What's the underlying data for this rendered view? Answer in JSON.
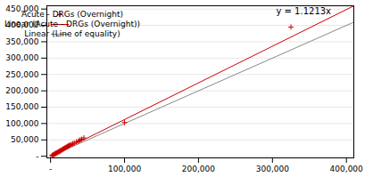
{
  "chart_data": {
    "type": "scatter",
    "series": [
      {
        "name": "Acute - DRGs (Overnight)",
        "type": "scatter",
        "color": "#cc0000",
        "marker": "plus",
        "x": [
          2000,
          3000,
          4000,
          5000,
          6000,
          7000,
          8000,
          9000,
          10000,
          11000,
          12000,
          13000,
          14000,
          15000,
          16000,
          17000,
          18000,
          19000,
          20000,
          21000,
          22000,
          23000,
          24000,
          25000,
          26000,
          28000,
          30000,
          32000,
          35000,
          38000,
          40000,
          42000,
          45000,
          100000,
          325000
        ],
        "values": [
          2500,
          3500,
          5000,
          6000,
          7500,
          8500,
          10000,
          11000,
          12500,
          13500,
          15000,
          16000,
          17500,
          19000,
          20500,
          22000,
          23000,
          24500,
          26000,
          27000,
          28500,
          30000,
          31000,
          32500,
          34000,
          36000,
          38000,
          40000,
          44000,
          47000,
          50000,
          52000,
          56000,
          103000,
          395000
        ]
      },
      {
        "name": "Linear (Acute - DRGs (Overnight))",
        "type": "line",
        "color": "#cc0000",
        "line_style": "solid",
        "x": [
          0,
          410000
        ],
        "values": [
          0,
          459733
        ]
      },
      {
        "name": "Linear (Line of equality)",
        "type": "line",
        "color": "#888888",
        "line_style": "solid",
        "x": [
          0,
          410000
        ],
        "values": [
          0,
          410000
        ]
      }
    ],
    "annotations": [
      {
        "text": "y = 1.1213x",
        "x": 305000,
        "y": 453000
      }
    ],
    "xlim": [
      -5000,
      410000
    ],
    "ylim": [
      -5000,
      460000
    ],
    "xticks": [
      {
        "value": 0,
        "label": "-"
      },
      {
        "value": 100000,
        "label": "100,000"
      },
      {
        "value": 200000,
        "label": "200,000"
      },
      {
        "value": 300000,
        "label": "300,000"
      },
      {
        "value": 400000,
        "label": "400,000"
      }
    ],
    "yticks": [
      {
        "value": 0,
        "label": "-"
      },
      {
        "value": 50000,
        "label": "50,000"
      },
      {
        "value": 100000,
        "label": "100,000"
      },
      {
        "value": 150000,
        "label": "150,000"
      },
      {
        "value": 200000,
        "label": "200,000"
      },
      {
        "value": 250000,
        "label": "250,000"
      },
      {
        "value": 300000,
        "label": "300,000"
      },
      {
        "value": 350000,
        "label": "350,000"
      },
      {
        "value": 400000,
        "label": "400,000"
      },
      {
        "value": 450000,
        "label": "450,000"
      }
    ],
    "grid": "y",
    "legend": "upper left"
  }
}
